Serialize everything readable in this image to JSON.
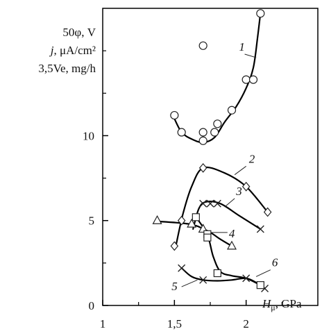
{
  "chart_data": {
    "type": "scatter",
    "x_axis": {
      "label_symbol": "H",
      "label_subscript": "μ",
      "label_unit": ", GPa",
      "xlim": [
        1.0,
        2.5
      ],
      "ticks": [
        1,
        1.5,
        2
      ],
      "tick_labels": [
        "1",
        "1,5",
        "2"
      ]
    },
    "y_axis": {
      "labels": [
        "50φ, V",
        "j, μA/cm²",
        "3,5Ve, mg/h"
      ],
      "ylim": [
        0,
        17.5
      ],
      "ticks": [
        0,
        5,
        10
      ],
      "tick_labels": [
        "0",
        "5",
        "10"
      ]
    },
    "grid": false,
    "series": [
      {
        "curve_label": "1",
        "marker": "circle",
        "points": [
          [
            1.5,
            11.2
          ],
          [
            1.55,
            10.2
          ],
          [
            1.7,
            9.7
          ],
          [
            1.7,
            10.2
          ],
          [
            1.78,
            10.2
          ],
          [
            1.8,
            10.7
          ],
          [
            1.9,
            11.5
          ],
          [
            2.0,
            13.3
          ],
          [
            2.05,
            13.3
          ],
          [
            2.1,
            17.2
          ],
          [
            1.7,
            15.3
          ]
        ],
        "curve": [
          [
            1.5,
            11.0
          ],
          [
            1.55,
            10.2
          ],
          [
            1.62,
            9.8
          ],
          [
            1.7,
            9.6
          ],
          [
            1.78,
            9.9
          ],
          [
            1.85,
            10.8
          ],
          [
            1.93,
            11.7
          ],
          [
            2.0,
            12.8
          ],
          [
            2.05,
            14.0
          ],
          [
            2.08,
            15.8
          ],
          [
            2.1,
            17.2
          ]
        ]
      },
      {
        "curve_label": "2",
        "marker": "diamond",
        "points": [
          [
            1.5,
            3.5
          ],
          [
            1.55,
            5.0
          ],
          [
            1.7,
            8.1
          ],
          [
            2.0,
            7.0
          ],
          [
            2.15,
            5.5
          ]
        ],
        "curve": [
          [
            1.51,
            3.5
          ],
          [
            1.56,
            5.4
          ],
          [
            1.62,
            7.0
          ],
          [
            1.7,
            8.1
          ],
          [
            1.85,
            7.8
          ],
          [
            2.0,
            7.0
          ],
          [
            2.15,
            5.5
          ]
        ]
      },
      {
        "curve_label": "3",
        "marker": "cross",
        "points": [
          [
            1.7,
            6.0
          ],
          [
            1.75,
            6.0
          ],
          [
            1.8,
            6.0
          ],
          [
            2.1,
            4.5
          ]
        ],
        "curve": [
          [
            1.63,
            4.5
          ],
          [
            1.67,
            5.7
          ],
          [
            1.72,
            6.1
          ],
          [
            1.82,
            6.0
          ],
          [
            1.95,
            5.3
          ],
          [
            2.1,
            4.5
          ]
        ]
      },
      {
        "curve_label": "4",
        "marker": "triangle",
        "points": [
          [
            1.38,
            5.0
          ],
          [
            1.62,
            4.8
          ],
          [
            1.7,
            4.5
          ],
          [
            1.9,
            3.5
          ]
        ],
        "curve": [
          [
            1.38,
            4.95
          ],
          [
            1.55,
            4.85
          ],
          [
            1.65,
            4.7
          ],
          [
            1.75,
            4.3
          ],
          [
            1.82,
            3.9
          ],
          [
            1.9,
            3.5
          ]
        ]
      },
      {
        "curve_label": "5",
        "marker": "cross",
        "points": [
          [
            1.55,
            2.2
          ],
          [
            1.7,
            1.5
          ],
          [
            2.0,
            1.6
          ],
          [
            2.13,
            1.0
          ]
        ],
        "curve": [
          [
            1.55,
            2.2
          ],
          [
            1.62,
            1.7
          ],
          [
            1.7,
            1.5
          ],
          [
            1.8,
            1.45
          ],
          [
            1.9,
            1.5
          ],
          [
            2.0,
            1.6
          ],
          [
            2.08,
            1.3
          ],
          [
            2.13,
            1.0
          ]
        ]
      },
      {
        "curve_label": "6",
        "marker": "square",
        "points": [
          [
            1.65,
            5.2
          ],
          [
            1.73,
            4.2
          ],
          [
            1.73,
            4.0
          ],
          [
            1.8,
            1.9
          ],
          [
            2.1,
            1.2
          ]
        ],
        "curve": [
          [
            1.65,
            5.2
          ],
          [
            1.7,
            4.6
          ],
          [
            1.74,
            3.9
          ],
          [
            1.77,
            2.9
          ],
          [
            1.82,
            2.0
          ],
          [
            1.9,
            1.75
          ],
          [
            2.0,
            1.6
          ],
          [
            2.1,
            1.2
          ]
        ]
      }
    ]
  }
}
